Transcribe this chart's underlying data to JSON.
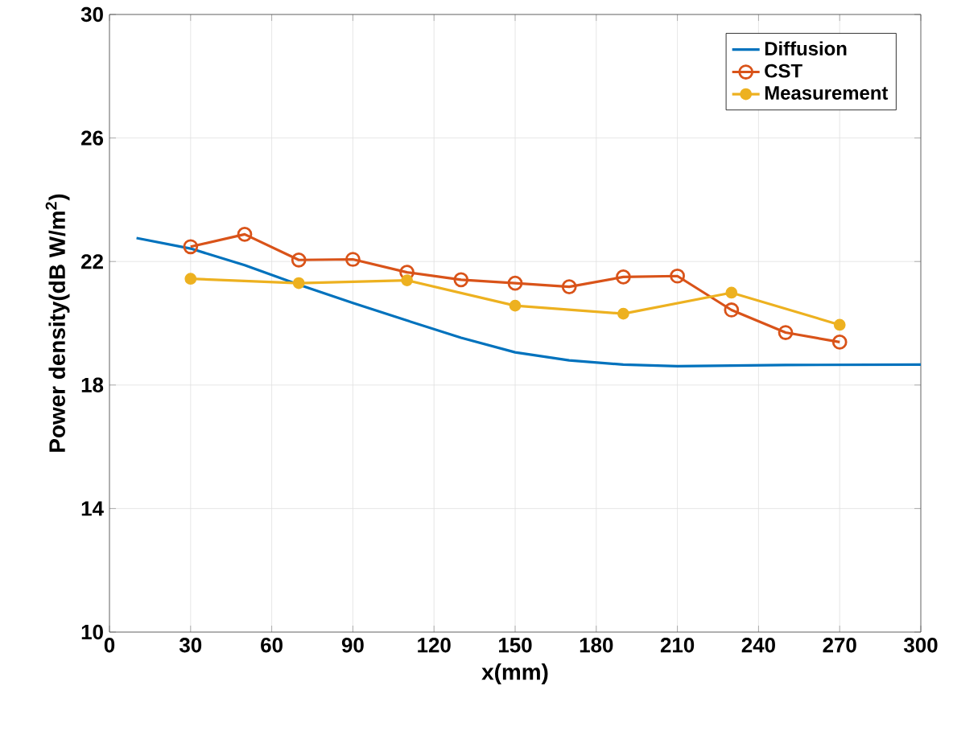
{
  "chart_data": {
    "type": "line",
    "xlabel": "x(mm)",
    "ylabel": "Power density(dB W/m$^{2}$)",
    "xlim": [
      0,
      300
    ],
    "xticks": [
      0,
      30,
      60,
      90,
      120,
      150,
      180,
      210,
      240,
      270,
      300
    ],
    "ylim": [
      10,
      30
    ],
    "yticks": [
      10,
      14,
      18,
      22,
      26,
      30
    ],
    "grid": true,
    "legend": "top right",
    "series": [
      {
        "name": "Diffusion",
        "color": "#0072bd",
        "marker": "none",
        "x": [
          10,
          30,
          50,
          70,
          90,
          110,
          130,
          150,
          170,
          190,
          210,
          250,
          300
        ],
        "values": [
          22.76,
          22.42,
          21.88,
          21.25,
          20.66,
          20.09,
          19.53,
          19.06,
          18.8,
          18.66,
          18.61,
          18.65,
          18.66
        ]
      },
      {
        "name": "CST",
        "color": "#d95319",
        "marker": "circle",
        "x": [
          30,
          50,
          70,
          90,
          110,
          130,
          150,
          170,
          190,
          210,
          230,
          250,
          270
        ],
        "values": [
          22.48,
          22.88,
          22.05,
          22.07,
          21.65,
          21.41,
          21.3,
          21.18,
          21.5,
          21.53,
          20.43,
          19.7,
          19.39
        ]
      },
      {
        "name": "Measurement",
        "color": "#edb120",
        "marker": "filled circle",
        "x": [
          30,
          70,
          110,
          150,
          190,
          230,
          270
        ],
        "values": [
          21.44,
          21.3,
          21.39,
          20.57,
          20.31,
          20.99,
          19.95
        ]
      }
    ]
  }
}
